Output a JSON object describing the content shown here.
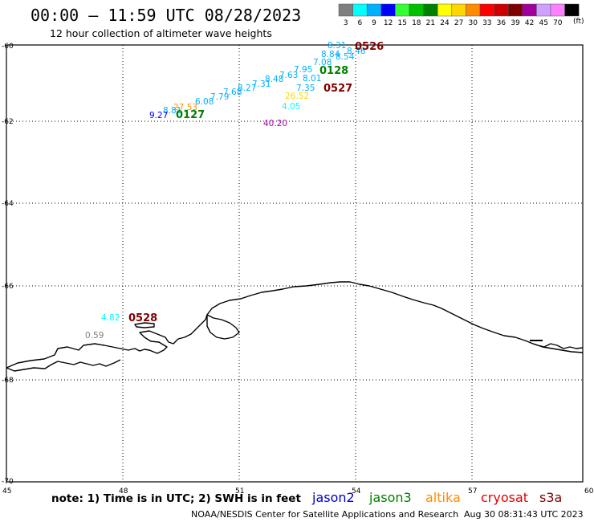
{
  "header": {
    "title": "00:00 – 11:59 UTC 08/28/2023",
    "subtitle": "12 hour collection of altimeter wave heights"
  },
  "legend": {
    "unit": "(ft)",
    "bins": [
      {
        "label": "3",
        "color": "#7f7f7f"
      },
      {
        "label": "6",
        "color": "#00ffff"
      },
      {
        "label": "9",
        "color": "#00b0ff"
      },
      {
        "label": "12",
        "color": "#0000ff"
      },
      {
        "label": "15",
        "color": "#33ff33"
      },
      {
        "label": "18",
        "color": "#00c000"
      },
      {
        "label": "21",
        "color": "#008000"
      },
      {
        "label": "24",
        "color": "#ffff00"
      },
      {
        "label": "27",
        "color": "#ffd700"
      },
      {
        "label": "30",
        "color": "#ff8c00"
      },
      {
        "label": "33",
        "color": "#ff0000"
      },
      {
        "label": "36",
        "color": "#cc0000"
      },
      {
        "label": "39",
        "color": "#800000"
      },
      {
        "label": "42",
        "color": "#a000a0"
      },
      {
        "label": "45",
        "color": "#d0a0ff"
      },
      {
        "label": "70",
        "color": "#ff80ff"
      },
      {
        "label": "",
        "color": "#000000"
      }
    ]
  },
  "map": {
    "lat_labels": [
      "-60",
      "-62",
      "-64",
      "-66",
      "-68",
      "-70"
    ],
    "lon_labels": [
      "45",
      "48",
      "51",
      "54",
      "57",
      "60"
    ],
    "lon_range": [
      45,
      60
    ],
    "lat_range": [
      -60,
      -70
    ]
  },
  "observations": [
    {
      "text": "8.31",
      "color": "#00b0ff"
    },
    {
      "text": "8.84",
      "color": "#00b0ff"
    },
    {
      "text": "8.54",
      "color": "#00b0ff"
    },
    {
      "text": "8.46",
      "color": "#00b0ff"
    },
    {
      "text": "7.08",
      "color": "#00b0ff"
    },
    {
      "text": "7.95",
      "color": "#00b0ff"
    },
    {
      "text": "7.63",
      "color": "#00b0ff"
    },
    {
      "text": "8.48",
      "color": "#00b0ff"
    },
    {
      "text": "7.31",
      "color": "#00b0ff"
    },
    {
      "text": "8.27",
      "color": "#00b0ff"
    },
    {
      "text": "7.68",
      "color": "#00b0ff"
    },
    {
      "text": "7.79",
      "color": "#00b0ff"
    },
    {
      "text": "6.08",
      "color": "#00b0ff"
    },
    {
      "text": "27.53",
      "color": "#ff8c00"
    },
    {
      "text": "8.81",
      "color": "#00b0ff"
    },
    {
      "text": "9.27",
      "color": "#0000ff"
    },
    {
      "text": "8.01",
      "color": "#00b0ff"
    },
    {
      "text": "7.35",
      "color": "#00b0ff"
    },
    {
      "text": "26.52",
      "color": "#ffd700"
    },
    {
      "text": "4.05",
      "color": "#00ffff"
    },
    {
      "text": "40.20",
      "color": "#a000a0"
    },
    {
      "text": "4.82",
      "color": "#00ffff"
    },
    {
      "text": "0.59",
      "color": "#7f7f7f"
    }
  ],
  "time_labels": [
    {
      "text": "0526",
      "color": "#800000"
    },
    {
      "text": "0128",
      "color": "#008000"
    },
    {
      "text": "0527",
      "color": "#800000"
    },
    {
      "text": "0127",
      "color": "#008000"
    },
    {
      "text": "0528",
      "color": "#800000"
    }
  ],
  "footer": {
    "note": "note: 1) Time is in UTC; 2) SWH is in feet",
    "missions": [
      {
        "name": "jason2",
        "color": "#0000cc"
      },
      {
        "name": "jason3",
        "color": "#008000"
      },
      {
        "name": "altika",
        "color": "#ff8c00"
      },
      {
        "name": "cryosat",
        "color": "#e00000"
      },
      {
        "name": "s3a",
        "color": "#800000"
      }
    ],
    "credit": "NOAA/NESDIS Center for Satellite Applications and Research",
    "timestamp": "Aug 30 08:31:43 UTC 2023"
  }
}
